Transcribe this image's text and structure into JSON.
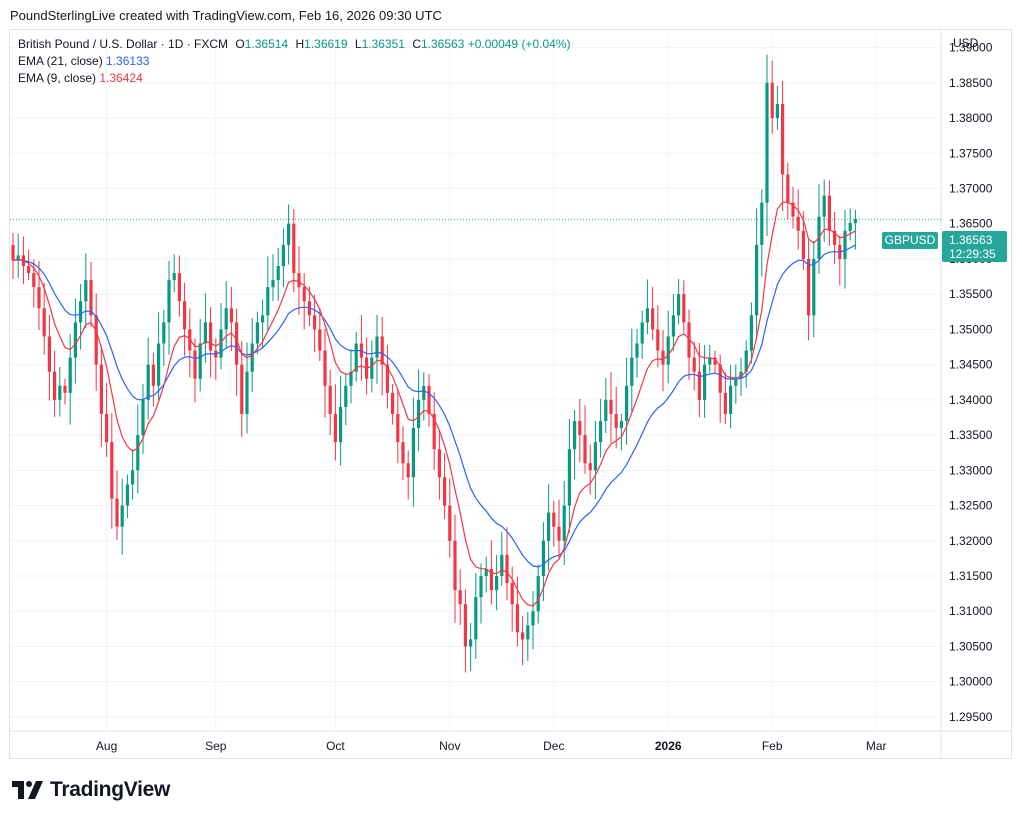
{
  "header": {
    "attribution": "PoundSterlingLive created with TradingView.com, Feb 16, 2026 09:30 UTC"
  },
  "legend": {
    "symbol": "British Pound / U.S. Dollar · 1D · FXCM",
    "o_label": "O",
    "o_value": "1.36514",
    "h_label": "H",
    "h_value": "1.36619",
    "l_label": "L",
    "l_value": "1.36351",
    "c_label": "C",
    "c_value": "1.36563",
    "change": "+0.00049 (+0.04%)",
    "ema21_label": "EMA (21, close)",
    "ema21_value": "1.36133",
    "ema9_label": "EMA (9, close)",
    "ema9_value": "1.36424"
  },
  "price_scale": {
    "currency": "USD",
    "symbol_tag": "GBPUSD",
    "last_price": "1.36563",
    "countdown": "12:29:35"
  },
  "logo": {
    "text": "TradingView"
  },
  "colors": {
    "up": "#089981",
    "down": "#f23645",
    "ema21": "#2962ff",
    "ema9": "#f23645",
    "grid": "#f0f3fa",
    "tag": "#26a69a"
  },
  "chart_data": {
    "type": "candlestick",
    "symbol": "GBPUSD",
    "interval": "1D",
    "ylim": [
      1.293,
      1.3925
    ],
    "y_ticks": [
      "1.39000",
      "1.38500",
      "1.38000",
      "1.37500",
      "1.37000",
      "1.36500",
      "1.36000",
      "1.35500",
      "1.35000",
      "1.34500",
      "1.34000",
      "1.33500",
      "1.33000",
      "1.32500",
      "1.32000",
      "1.31500",
      "1.31000",
      "1.30500",
      "1.30000",
      "1.29500"
    ],
    "x_ticks": [
      {
        "label": "Aug",
        "bar": 18,
        "bold": false
      },
      {
        "label": "Sep",
        "bar": 39,
        "bold": false
      },
      {
        "label": "Oct",
        "bar": 62,
        "bold": false
      },
      {
        "label": "Nov",
        "bar": 84,
        "bold": false
      },
      {
        "label": "Dec",
        "bar": 104,
        "bold": false
      },
      {
        "label": "2026",
        "bar": 126,
        "bold": true
      },
      {
        "label": "Feb",
        "bar": 146,
        "bold": false
      },
      {
        "label": "Mar",
        "bar": 166,
        "bold": false
      }
    ],
    "last_price": 1.36563,
    "series": [
      {
        "name": "EMA (21, close)",
        "color": "#2962ff",
        "last": 1.36133
      },
      {
        "name": "EMA (9, close)",
        "color": "#f23645",
        "last": 1.36424
      }
    ],
    "closes": [
      1.3598,
      1.3605,
      1.359,
      1.358,
      1.356,
      1.353,
      1.349,
      1.344,
      1.34,
      1.342,
      1.341,
      1.346,
      1.351,
      1.354,
      1.357,
      1.352,
      1.345,
      1.338,
      1.334,
      1.326,
      1.322,
      1.325,
      1.328,
      1.33,
      1.335,
      1.34,
      1.345,
      1.342,
      1.348,
      1.351,
      1.357,
      1.358,
      1.354,
      1.35,
      1.347,
      1.343,
      1.348,
      1.351,
      1.347,
      1.346,
      1.35,
      1.353,
      1.351,
      1.345,
      1.338,
      1.344,
      1.348,
      1.351,
      1.352,
      1.356,
      1.357,
      1.359,
      1.362,
      1.365,
      1.358,
      1.356,
      1.354,
      1.352,
      1.35,
      1.347,
      1.342,
      1.338,
      1.334,
      1.339,
      1.342,
      1.344,
      1.348,
      1.346,
      1.343,
      1.346,
      1.349,
      1.345,
      1.341,
      1.338,
      1.334,
      1.331,
      1.329,
      1.336,
      1.34,
      1.342,
      1.338,
      1.333,
      1.329,
      1.325,
      1.32,
      1.313,
      1.311,
      1.305,
      1.306,
      1.312,
      1.315,
      1.316,
      1.313,
      1.315,
      1.318,
      1.314,
      1.311,
      1.307,
      1.306,
      1.308,
      1.31,
      1.315,
      1.32,
      1.324,
      1.322,
      1.32,
      1.325,
      1.333,
      1.337,
      1.335,
      1.331,
      1.33,
      1.334,
      1.337,
      1.34,
      1.338,
      1.336,
      1.337,
      1.342,
      1.346,
      1.348,
      1.351,
      1.353,
      1.35,
      1.347,
      1.345,
      1.349,
      1.352,
      1.355,
      1.351,
      1.346,
      1.344,
      1.34,
      1.345,
      1.346,
      1.345,
      1.341,
      1.338,
      1.342,
      1.343,
      1.344,
      1.347,
      1.352,
      1.362,
      1.368,
      1.385,
      1.38,
      1.382,
      1.372,
      1.368,
      1.366,
      1.364,
      1.36,
      1.352,
      1.36,
      1.366,
      1.369,
      1.364,
      1.362,
      1.36,
      1.364,
      1.3651,
      1.36563
    ]
  }
}
